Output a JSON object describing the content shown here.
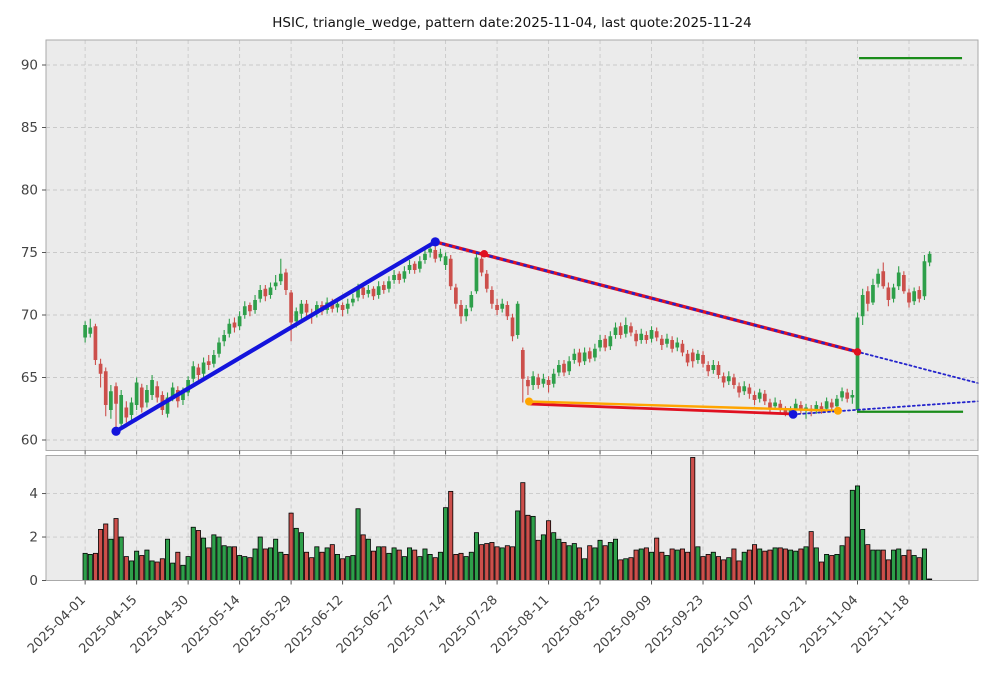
{
  "title": "HSIC, triangle_wedge, pattern date:2025-11-04, last quote:2025-11-24",
  "chart_data": {
    "type": "candlestick+volume",
    "title": "HSIC, triangle_wedge, pattern date:2025-11-04, last quote:2025-11-24",
    "symbol": "HSIC",
    "pattern": "triangle_wedge",
    "pattern_date": "2025-11-04",
    "last_quote": "2025-11-24",
    "x_tick_labels": [
      "2025-04-01",
      "2025-04-15",
      "2025-04-30",
      "2025-05-14",
      "2025-05-29",
      "2025-06-12",
      "2025-06-27",
      "2025-07-14",
      "2025-07-28",
      "2025-08-11",
      "2025-08-25",
      "2025-09-09",
      "2025-09-23",
      "2025-10-07",
      "2025-10-21",
      "2025-11-04",
      "2025-11-18"
    ],
    "x_tick_indices": [
      0,
      10,
      20,
      30,
      40,
      50,
      60,
      70,
      80,
      90,
      100,
      110,
      120,
      130,
      140,
      150,
      160
    ],
    "xlim": [
      -7.6,
      173.4
    ],
    "price_axis": {
      "ticks": [
        60,
        65,
        70,
        75,
        80,
        85,
        90
      ],
      "ylim": [
        59.16,
        92.0
      ]
    },
    "volume_axis": {
      "ticks": [
        0,
        2,
        4
      ],
      "ylim": [
        0,
        5.75
      ]
    },
    "colors": {
      "up": "#2E9F4A",
      "down": "#CC4F4B",
      "volume_edge": "#000000",
      "uptrend": "#1414DC",
      "resistance": "#E01020",
      "support": "#FFA500",
      "support_secondary": "#E01020",
      "extension_dotted": "#2424CC",
      "target_line": "#1A8C1A",
      "panel_bg": "#EBEBEB",
      "grid": "#C9C9C9",
      "tick_label": "#444444"
    },
    "candles": [
      [
        68.2,
        69.5,
        67.8,
        69.2,
        1.25
      ],
      [
        68.5,
        69.7,
        68.2,
        69.0,
        1.2
      ],
      [
        69.1,
        69.3,
        66.0,
        66.4,
        1.25
      ],
      [
        66.1,
        66.5,
        64.2,
        65.3,
        2.35
      ],
      [
        65.5,
        65.8,
        61.9,
        62.8,
        2.6
      ],
      [
        62.4,
        64.4,
        61.7,
        63.9,
        1.9
      ],
      [
        64.3,
        64.6,
        60.5,
        62.9,
        2.85
      ],
      [
        61.3,
        64.0,
        60.9,
        63.6,
        2.0
      ],
      [
        62.6,
        63.1,
        61.4,
        61.8,
        1.1
      ],
      [
        62.0,
        63.4,
        61.6,
        63.0,
        0.9
      ],
      [
        62.8,
        65.0,
        62.4,
        64.6,
        1.35
      ],
      [
        64.2,
        64.5,
        62.2,
        62.6,
        1.15
      ],
      [
        63.0,
        64.4,
        62.6,
        64.0,
        1.4
      ],
      [
        63.6,
        65.2,
        63.2,
        64.8,
        0.9
      ],
      [
        64.3,
        64.7,
        63.0,
        63.4,
        0.85
      ],
      [
        63.6,
        63.9,
        62.0,
        62.4,
        1.0
      ],
      [
        62.1,
        63.8,
        61.8,
        63.4,
        1.9
      ],
      [
        63.4,
        64.6,
        63.1,
        64.2,
        0.8
      ],
      [
        64.0,
        64.3,
        62.6,
        63.1,
        1.3
      ],
      [
        63.2,
        64.2,
        62.8,
        63.9,
        0.7
      ],
      [
        63.8,
        65.1,
        63.5,
        64.8,
        1.1
      ],
      [
        64.9,
        66.3,
        64.6,
        65.9,
        2.45
      ],
      [
        65.8,
        66.1,
        64.8,
        65.2,
        2.3
      ],
      [
        65.3,
        66.6,
        65.0,
        66.2,
        1.95
      ],
      [
        66.3,
        66.8,
        65.6,
        66.0,
        1.5
      ],
      [
        66.1,
        67.2,
        65.8,
        66.8,
        2.1
      ],
      [
        66.9,
        68.2,
        66.6,
        67.8,
        2.0
      ],
      [
        67.9,
        68.8,
        67.5,
        68.4,
        1.6
      ],
      [
        68.5,
        69.7,
        68.2,
        69.3,
        1.55
      ],
      [
        69.4,
        69.8,
        68.6,
        69.0,
        1.55
      ],
      [
        69.1,
        70.3,
        68.8,
        69.9,
        1.15
      ],
      [
        70.0,
        71.1,
        69.7,
        70.7,
        1.1
      ],
      [
        70.8,
        71.0,
        69.9,
        70.3,
        1.05
      ],
      [
        70.4,
        71.6,
        70.1,
        71.2,
        1.45
      ],
      [
        71.3,
        72.4,
        71.0,
        72.0,
        2.0
      ],
      [
        72.1,
        72.4,
        71.1,
        71.5,
        1.45
      ],
      [
        71.6,
        72.6,
        71.3,
        72.2,
        1.5
      ],
      [
        72.3,
        73.2,
        72.0,
        72.6,
        1.9
      ],
      [
        72.7,
        74.5,
        72.4,
        73.3,
        1.3
      ],
      [
        73.4,
        73.7,
        71.6,
        72.0,
        1.2
      ],
      [
        71.8,
        72.0,
        67.9,
        69.4,
        3.1
      ],
      [
        69.5,
        70.6,
        69.0,
        70.3,
        2.4
      ],
      [
        70.1,
        71.2,
        69.7,
        70.9,
        2.2
      ],
      [
        70.9,
        71.2,
        69.9,
        70.2,
        1.3
      ],
      [
        70.1,
        70.5,
        69.3,
        70.0,
        1.05
      ],
      [
        70.1,
        71.1,
        69.8,
        70.8,
        1.55
      ],
      [
        70.8,
        71.1,
        70.0,
        70.3,
        1.3
      ],
      [
        70.4,
        71.4,
        70.1,
        71.0,
        1.5
      ],
      [
        71.1,
        71.3,
        70.2,
        70.5,
        1.65
      ],
      [
        70.6,
        71.3,
        70.2,
        70.9,
        1.2
      ],
      [
        70.8,
        71.0,
        69.9,
        70.4,
        1.0
      ],
      [
        70.5,
        71.3,
        70.1,
        70.9,
        1.1
      ],
      [
        71.0,
        71.7,
        70.7,
        71.3,
        1.15
      ],
      [
        71.4,
        72.5,
        71.1,
        72.1,
        3.3
      ],
      [
        72.2,
        72.5,
        71.3,
        71.6,
        2.1
      ],
      [
        71.7,
        72.4,
        71.4,
        72.0,
        1.9
      ],
      [
        72.1,
        72.3,
        71.2,
        71.5,
        1.35
      ],
      [
        71.6,
        72.7,
        71.3,
        72.3,
        1.55
      ],
      [
        72.4,
        72.7,
        71.7,
        72.0,
        1.55
      ],
      [
        72.1,
        73.1,
        71.8,
        72.7,
        1.25
      ],
      [
        72.8,
        73.6,
        72.5,
        73.2,
        1.5
      ],
      [
        73.3,
        73.5,
        72.5,
        72.8,
        1.4
      ],
      [
        72.9,
        73.9,
        72.6,
        73.5,
        1.1
      ],
      [
        73.6,
        74.4,
        73.3,
        74.0,
        1.5
      ],
      [
        74.1,
        74.3,
        73.3,
        73.6,
        1.4
      ],
      [
        73.7,
        74.7,
        73.4,
        74.3,
        1.1
      ],
      [
        74.4,
        75.3,
        74.1,
        74.9,
        1.45
      ],
      [
        75.0,
        75.7,
        74.6,
        75.3,
        1.2
      ],
      [
        75.2,
        75.5,
        74.2,
        74.5,
        1.05
      ],
      [
        74.6,
        75.3,
        74.3,
        74.9,
        1.3
      ],
      [
        74.0,
        75.0,
        73.6,
        74.7,
        3.35
      ],
      [
        74.5,
        74.8,
        72.0,
        72.3,
        4.1
      ],
      [
        72.2,
        72.5,
        70.5,
        70.9,
        1.2
      ],
      [
        70.8,
        71.2,
        69.3,
        69.9,
        1.25
      ],
      [
        69.9,
        70.8,
        69.5,
        70.5,
        1.1
      ],
      [
        70.6,
        71.9,
        70.3,
        71.6,
        1.3
      ],
      [
        71.9,
        74.9,
        71.7,
        74.6,
        2.2
      ],
      [
        74.5,
        74.8,
        73.1,
        73.4,
        1.65
      ],
      [
        73.3,
        73.6,
        71.8,
        72.1,
        1.7
      ],
      [
        72.0,
        72.3,
        70.5,
        70.9,
        1.75
      ],
      [
        70.8,
        71.3,
        70.0,
        70.4,
        1.55
      ],
      [
        70.5,
        71.3,
        70.2,
        70.9,
        1.5
      ],
      [
        70.8,
        71.1,
        69.6,
        69.9,
        1.6
      ],
      [
        69.8,
        70.1,
        67.9,
        68.3,
        1.55
      ],
      [
        68.4,
        71.1,
        68.1,
        70.9,
        3.2
      ],
      [
        67.2,
        67.4,
        63.0,
        64.9,
        4.5
      ],
      [
        64.8,
        65.1,
        63.6,
        64.3,
        3.0
      ],
      [
        64.4,
        65.5,
        64.0,
        65.1,
        2.95
      ],
      [
        65.0,
        65.3,
        64.1,
        64.4,
        1.85
      ],
      [
        64.5,
        65.3,
        64.2,
        64.9,
        2.1
      ],
      [
        64.8,
        65.1,
        63.8,
        64.4,
        2.75
      ],
      [
        64.5,
        65.7,
        64.2,
        65.3,
        2.2
      ],
      [
        65.4,
        66.4,
        65.1,
        66.0,
        1.9
      ],
      [
        66.1,
        66.4,
        65.1,
        65.4,
        1.75
      ],
      [
        65.5,
        66.7,
        65.2,
        66.3,
        1.6
      ],
      [
        66.4,
        67.3,
        66.1,
        66.9,
        1.7
      ],
      [
        67.0,
        67.3,
        65.9,
        66.2,
        1.5
      ],
      [
        66.3,
        67.4,
        66.0,
        67.0,
        1.0
      ],
      [
        67.1,
        67.4,
        66.2,
        66.5,
        1.6
      ],
      [
        66.6,
        67.7,
        66.3,
        67.3,
        1.5
      ],
      [
        67.4,
        68.4,
        67.1,
        68.0,
        1.85
      ],
      [
        68.1,
        68.4,
        67.1,
        67.4,
        1.6
      ],
      [
        67.5,
        68.7,
        67.2,
        68.3,
        1.75
      ],
      [
        68.4,
        69.4,
        68.1,
        69.0,
        1.9
      ],
      [
        69.1,
        69.4,
        68.1,
        68.4,
        0.95
      ],
      [
        68.5,
        69.8,
        68.2,
        69.2,
        1.0
      ],
      [
        69.1,
        69.4,
        68.3,
        68.6,
        1.05
      ],
      [
        68.5,
        68.8,
        67.5,
        67.9,
        1.4
      ],
      [
        68.0,
        68.9,
        67.7,
        68.5,
        1.45
      ],
      [
        68.4,
        68.7,
        67.7,
        68.0,
        1.5
      ],
      [
        68.1,
        69.1,
        67.8,
        68.8,
        1.3
      ],
      [
        68.7,
        69.0,
        67.9,
        68.2,
        1.95
      ],
      [
        68.1,
        68.4,
        67.2,
        67.6,
        1.3
      ],
      [
        67.7,
        68.5,
        67.4,
        68.1,
        1.15
      ],
      [
        68.0,
        68.3,
        67.0,
        67.3,
        1.45
      ],
      [
        67.4,
        68.2,
        67.1,
        67.8,
        1.4
      ],
      [
        67.7,
        68.0,
        66.7,
        67.0,
        1.45
      ],
      [
        66.9,
        67.2,
        65.9,
        66.2,
        1.3
      ],
      [
        67.0,
        67.3,
        65.8,
        66.3,
        5.66
      ],
      [
        66.4,
        67.2,
        66.1,
        66.9,
        1.55
      ],
      [
        66.8,
        67.1,
        65.8,
        66.1,
        1.1
      ],
      [
        66.0,
        66.3,
        65.1,
        65.5,
        1.2
      ],
      [
        65.6,
        66.4,
        65.3,
        66.0,
        1.3
      ],
      [
        66.0,
        66.3,
        64.9,
        65.2,
        1.1
      ],
      [
        65.1,
        65.4,
        64.2,
        64.6,
        0.95
      ],
      [
        64.7,
        65.5,
        64.4,
        65.1,
        1.05
      ],
      [
        65.0,
        65.3,
        64.1,
        64.4,
        1.45
      ],
      [
        64.3,
        64.6,
        63.4,
        63.8,
        0.9
      ],
      [
        63.9,
        64.7,
        63.6,
        64.3,
        1.3
      ],
      [
        64.2,
        64.5,
        63.3,
        63.7,
        1.4
      ],
      [
        63.6,
        63.9,
        62.8,
        63.2,
        1.65
      ],
      [
        63.3,
        64.1,
        63.0,
        63.8,
        1.45
      ],
      [
        63.7,
        64.0,
        62.8,
        63.1,
        1.35
      ],
      [
        63.0,
        63.3,
        62.2,
        62.6,
        1.4
      ],
      [
        62.7,
        63.4,
        62.4,
        63.0,
        1.5
      ],
      [
        62.9,
        63.2,
        62.1,
        62.5,
        1.5
      ],
      [
        62.4,
        62.7,
        61.9,
        62.1,
        1.45
      ],
      [
        62.1,
        62.7,
        62.0,
        62.4,
        1.4
      ],
      [
        62.5,
        63.3,
        62.2,
        62.9,
        1.35
      ],
      [
        62.8,
        63.1,
        62.1,
        62.4,
        1.45
      ],
      [
        62.4,
        62.9,
        61.7,
        62.6,
        1.55
      ],
      [
        62.5,
        62.8,
        61.9,
        62.3,
        2.25
      ],
      [
        62.4,
        63.1,
        62.1,
        62.8,
        1.5
      ],
      [
        62.7,
        63.0,
        62.1,
        62.4,
        0.85
      ],
      [
        62.5,
        63.4,
        62.3,
        63.1,
        1.2
      ],
      [
        63.0,
        63.3,
        62.3,
        62.6,
        1.15
      ],
      [
        62.7,
        63.6,
        62.4,
        63.3,
        1.2
      ],
      [
        63.4,
        64.2,
        63.1,
        63.9,
        1.6
      ],
      [
        63.8,
        64.1,
        63.0,
        63.3,
        2.0
      ],
      [
        63.4,
        64.0,
        62.9,
        63.6,
        4.15
      ],
      [
        62.4,
        70.2,
        62.2,
        69.8,
        4.35
      ],
      [
        69.9,
        72.1,
        69.2,
        71.6,
        2.35
      ],
      [
        71.9,
        72.3,
        70.3,
        70.9,
        1.65
      ],
      [
        71.0,
        72.9,
        70.8,
        72.4,
        1.4
      ],
      [
        72.5,
        73.7,
        72.2,
        73.3,
        1.4
      ],
      [
        73.5,
        74.2,
        72.1,
        72.3,
        1.4
      ],
      [
        72.2,
        72.6,
        70.7,
        71.2,
        0.95
      ],
      [
        71.3,
        72.5,
        71.0,
        72.2,
        1.4
      ],
      [
        72.3,
        73.9,
        72.0,
        73.4,
        1.45
      ],
      [
        73.2,
        73.5,
        71.7,
        71.9,
        1.15
      ],
      [
        71.8,
        72.1,
        70.6,
        71.0,
        1.4
      ],
      [
        71.1,
        72.2,
        70.8,
        71.9,
        1.15
      ],
      [
        72.0,
        72.3,
        71.0,
        71.3,
        1.05
      ],
      [
        71.5,
        74.8,
        71.2,
        74.3,
        1.45
      ],
      [
        74.2,
        75.1,
        73.9,
        74.9,
        0.07
      ]
    ],
    "overlays": {
      "uptrend_line": {
        "from": [
          6,
          60.7
        ],
        "to": [
          68,
          75.85
        ]
      },
      "resistance_line": {
        "from": [
          68,
          75.85
        ],
        "to": [
          150,
          67.05
        ],
        "markers": [
          [
            77.5,
            74.9
          ],
          [
            150,
            67.05
          ]
        ]
      },
      "resistance_extension_dotted": {
        "from": [
          68,
          75.85
        ],
        "to": [
          173.4,
          64.55
        ]
      },
      "support_line_orange": {
        "from": [
          86.2,
          63.08
        ],
        "to": [
          146.2,
          62.34
        ]
      },
      "support_line_red": {
        "from": [
          86.2,
          62.88
        ],
        "to": [
          137.5,
          62.08
        ]
      },
      "support_extension_dotted": {
        "from": [
          137.5,
          62.05
        ],
        "to": [
          173.4,
          63.1
        ]
      },
      "pivot_low_marker": [
        137.5,
        62.05
      ],
      "target_line_top": {
        "y": 90.55,
        "from": 150.3,
        "to": 170.3
      },
      "pattern_low_line": {
        "y": 62.26,
        "from": 149.9,
        "to": 170.5
      }
    }
  }
}
